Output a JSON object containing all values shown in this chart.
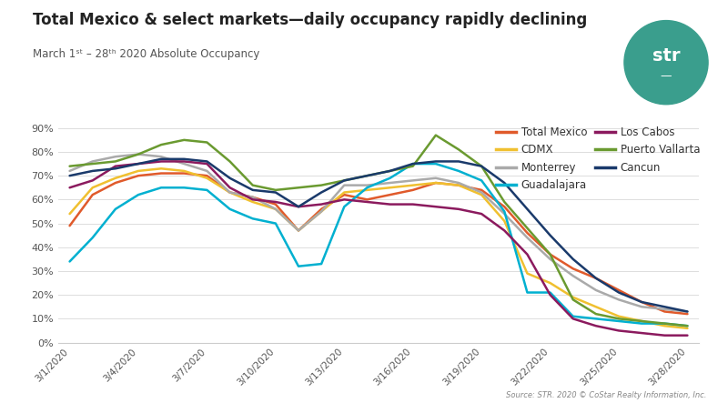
{
  "title": "Total Mexico & select markets—daily occupancy rapidly declining",
  "subtitle": "March 1ˢᵗ – 28ᵗʰ 2020 Absolute Occupancy",
  "source": "Source: STR. 2020 © CoStar Realty Information, Inc.",
  "ylim": [
    0,
    0.93
  ],
  "yticks": [
    0.0,
    0.1,
    0.2,
    0.3,
    0.4,
    0.5,
    0.6,
    0.7,
    0.8,
    0.9
  ],
  "ytick_labels": [
    "0%",
    "10%",
    "20%",
    "30%",
    "40%",
    "50%",
    "60%",
    "70%",
    "80%",
    "90%"
  ],
  "background_color": "#ffffff",
  "logo_color": "#3a9e8d",
  "series": {
    "Total Mexico": {
      "color": "#e05a2b",
      "data": [
        0.49,
        0.62,
        0.67,
        0.7,
        0.71,
        0.71,
        0.7,
        0.63,
        0.61,
        0.58,
        0.47,
        0.56,
        0.62,
        0.6,
        0.62,
        0.64,
        0.67,
        0.66,
        0.64,
        0.57,
        0.46,
        0.37,
        0.31,
        0.27,
        0.22,
        0.17,
        0.13,
        0.12
      ]
    },
    "CDMX": {
      "color": "#f0c030",
      "data": [
        0.54,
        0.65,
        0.69,
        0.72,
        0.73,
        0.72,
        0.69,
        0.63,
        0.59,
        0.56,
        0.47,
        0.55,
        0.63,
        0.64,
        0.65,
        0.66,
        0.67,
        0.66,
        0.62,
        0.51,
        0.29,
        0.25,
        0.19,
        0.15,
        0.11,
        0.09,
        0.07,
        0.06
      ]
    },
    "Monterrey": {
      "color": "#aaaaaa",
      "data": [
        0.72,
        0.76,
        0.78,
        0.79,
        0.78,
        0.75,
        0.72,
        0.63,
        0.61,
        0.56,
        0.47,
        0.55,
        0.66,
        0.66,
        0.67,
        0.68,
        0.69,
        0.67,
        0.63,
        0.54,
        0.44,
        0.35,
        0.28,
        0.22,
        0.18,
        0.15,
        0.14,
        0.13
      ]
    },
    "Guadalajara": {
      "color": "#00b0d0",
      "data": [
        0.34,
        0.44,
        0.56,
        0.62,
        0.65,
        0.65,
        0.64,
        0.56,
        0.52,
        0.5,
        0.32,
        0.33,
        0.57,
        0.65,
        0.69,
        0.75,
        0.75,
        0.72,
        0.68,
        0.55,
        0.21,
        0.21,
        0.11,
        0.1,
        0.09,
        0.08,
        0.08,
        0.07
      ]
    },
    "Los Cabos": {
      "color": "#8b1a5e",
      "data": [
        0.65,
        0.68,
        0.74,
        0.75,
        0.76,
        0.76,
        0.75,
        0.65,
        0.6,
        0.59,
        0.57,
        0.58,
        0.6,
        0.59,
        0.58,
        0.58,
        0.57,
        0.56,
        0.54,
        0.47,
        0.37,
        0.2,
        0.1,
        0.07,
        0.05,
        0.04,
        0.03,
        0.03
      ]
    },
    "Puerto Vallarta": {
      "color": "#6a9a30",
      "data": [
        0.74,
        0.75,
        0.76,
        0.79,
        0.83,
        0.85,
        0.84,
        0.76,
        0.66,
        0.64,
        0.65,
        0.66,
        0.68,
        0.7,
        0.72,
        0.74,
        0.87,
        0.81,
        0.74,
        0.59,
        0.48,
        0.37,
        0.18,
        0.12,
        0.1,
        0.09,
        0.08,
        0.07
      ]
    },
    "Cancun": {
      "color": "#1a3a6b",
      "data": [
        0.7,
        0.72,
        0.73,
        0.75,
        0.77,
        0.77,
        0.76,
        0.69,
        0.64,
        0.63,
        0.57,
        0.63,
        0.68,
        0.7,
        0.72,
        0.75,
        0.76,
        0.76,
        0.74,
        0.67,
        0.56,
        0.45,
        0.35,
        0.27,
        0.21,
        0.17,
        0.15,
        0.13
      ]
    }
  },
  "xtick_positions": [
    0,
    3,
    6,
    9,
    12,
    15,
    18,
    21,
    24,
    27
  ],
  "xtick_labels": [
    "3/1/2020",
    "3/4/2020",
    "3/7/2020",
    "3/10/2020",
    "3/13/2020",
    "3/16/2020",
    "3/19/2020",
    "3/22/2020",
    "3/25/2020",
    "3/28/2020"
  ]
}
